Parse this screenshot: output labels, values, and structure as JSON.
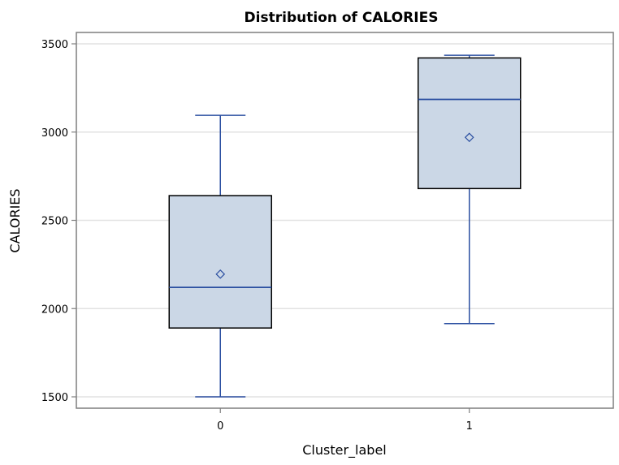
{
  "chart_data": {
    "type": "box",
    "title": "Distribution of CALORIES",
    "xlabel": "Cluster_label",
    "ylabel": "CALORIES",
    "categories": [
      "0",
      "1"
    ],
    "ylim": [
      1450,
      3575
    ],
    "yticks": [
      1500,
      2000,
      2500,
      3000,
      3500
    ],
    "grid": true,
    "boxes": [
      {
        "category": "0",
        "min": 1500,
        "q1": 1890,
        "median": 2120,
        "q3": 2640,
        "max": 3095,
        "mean": 2195
      },
      {
        "category": "1",
        "min": 1915,
        "q1": 2680,
        "median": 3185,
        "q3": 3420,
        "max": 3435,
        "mean": 2970
      }
    ],
    "colors": {
      "box_fill": "#cbd7e6",
      "box_border": "#000000",
      "whisker": "#2a4ea0",
      "median": "#2a4ea0",
      "mean_marker": "#2a4ea0",
      "grid": "#e2e2e2",
      "frame": "#7f7f7f"
    }
  }
}
